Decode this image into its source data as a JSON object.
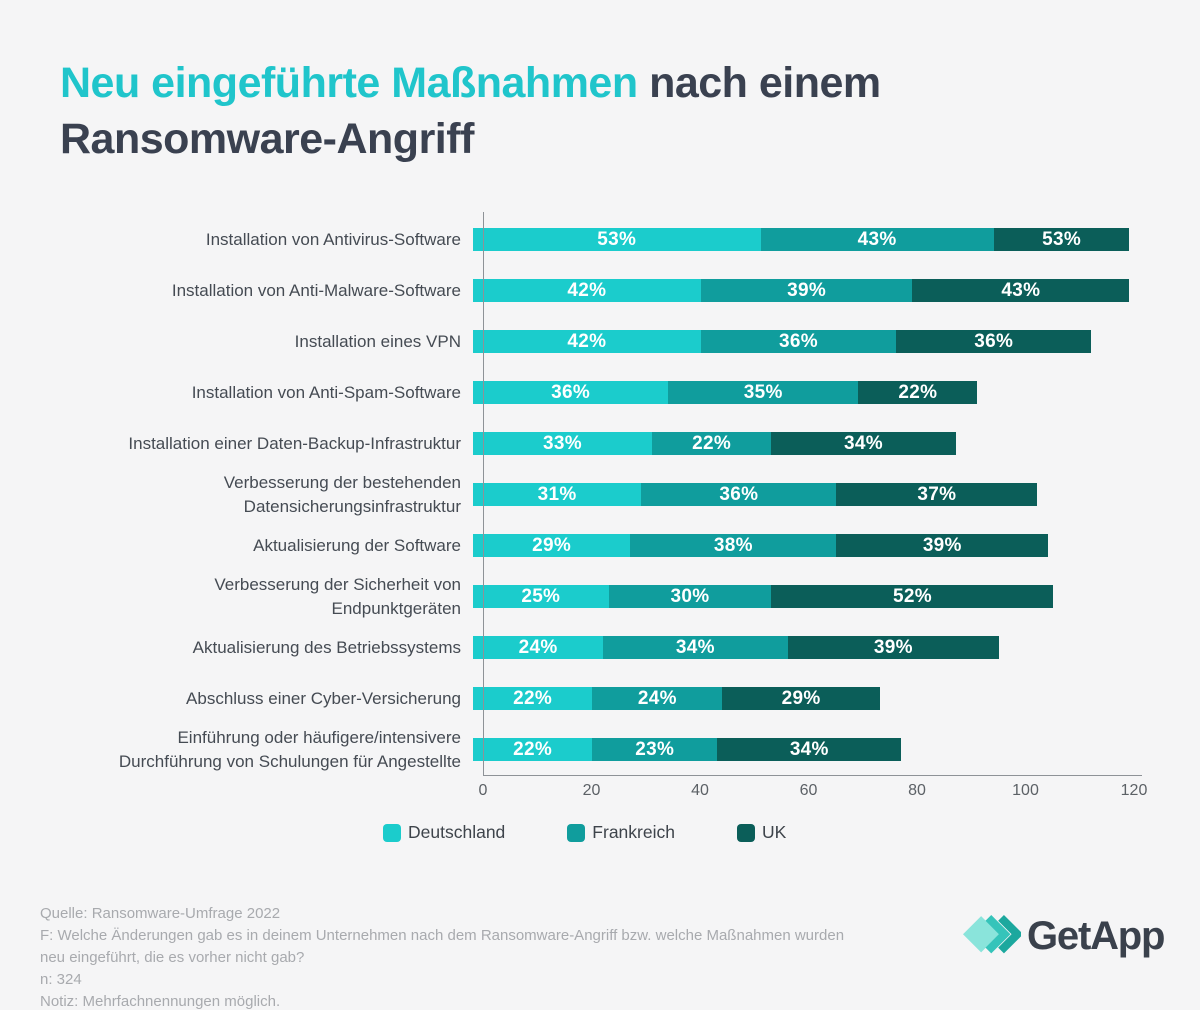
{
  "title": {
    "highlight": "Neu eingeführte Maßnahmen",
    "rest": " nach einem",
    "line2": "Ransomware-Angriff"
  },
  "chart_data": {
    "type": "bar",
    "stacked": true,
    "orientation": "horizontal",
    "categories": [
      [
        "Installation von Antivirus-Software"
      ],
      [
        "Installation von Anti-Malware-Software"
      ],
      [
        "Installation eines VPN"
      ],
      [
        "Installation von Anti-Spam-Software"
      ],
      [
        "Installation einer Daten-Backup-Infrastruktur"
      ],
      [
        "Verbesserung der bestehenden",
        "Datensicherungsinfrastruktur"
      ],
      [
        "Aktualisierung der Software"
      ],
      [
        "Verbesserung der Sicherheit von",
        "Endpunktgeräten"
      ],
      [
        "Aktualisierung des Betriebssystems"
      ],
      [
        "Abschluss einer Cyber-Versicherung"
      ],
      [
        "Einführung oder häufigere/intensivere",
        "Durchführung von Schulungen für Angestellte"
      ]
    ],
    "series": [
      {
        "name": "Deutschland",
        "color": "#1bcccc",
        "values": [
          53,
          42,
          42,
          36,
          33,
          31,
          29,
          25,
          24,
          22,
          22
        ]
      },
      {
        "name": "Frankreich",
        "color": "#109d9d",
        "values": [
          43,
          39,
          36,
          35,
          22,
          36,
          38,
          30,
          34,
          24,
          23
        ]
      },
      {
        "name": "UK",
        "color": "#0b5e59",
        "values": [
          53,
          43,
          36,
          22,
          34,
          37,
          39,
          52,
          39,
          29,
          34
        ]
      }
    ],
    "x_ticks": [
      0,
      20,
      40,
      60,
      80,
      100,
      120
    ],
    "xlim": [
      0,
      121
    ],
    "value_suffix": "%",
    "legend_position": "bottom",
    "grid": false
  },
  "footer": {
    "source": "Quelle: Ransomware-Umfrage 2022",
    "question": "F: Welche Änderungen gab es in deinem Unternehmen nach dem Ransomware-Angriff bzw. welche Maßnahmen wurden neu eingeführt, die es vorher nicht gab?",
    "n": "n: 324",
    "note": "Notiz: Mehrfachnennungen möglich."
  },
  "logo": {
    "text": "GetApp",
    "mark_colors": [
      "#8ae4db",
      "#35c4ba",
      "#1ca89e"
    ]
  },
  "colors": {
    "background": "#f5f5f6",
    "title_highlight": "#20c5cb",
    "title_dark": "#3a4150",
    "axis_line": "#8e9297",
    "footer_text": "#a8aaae"
  }
}
